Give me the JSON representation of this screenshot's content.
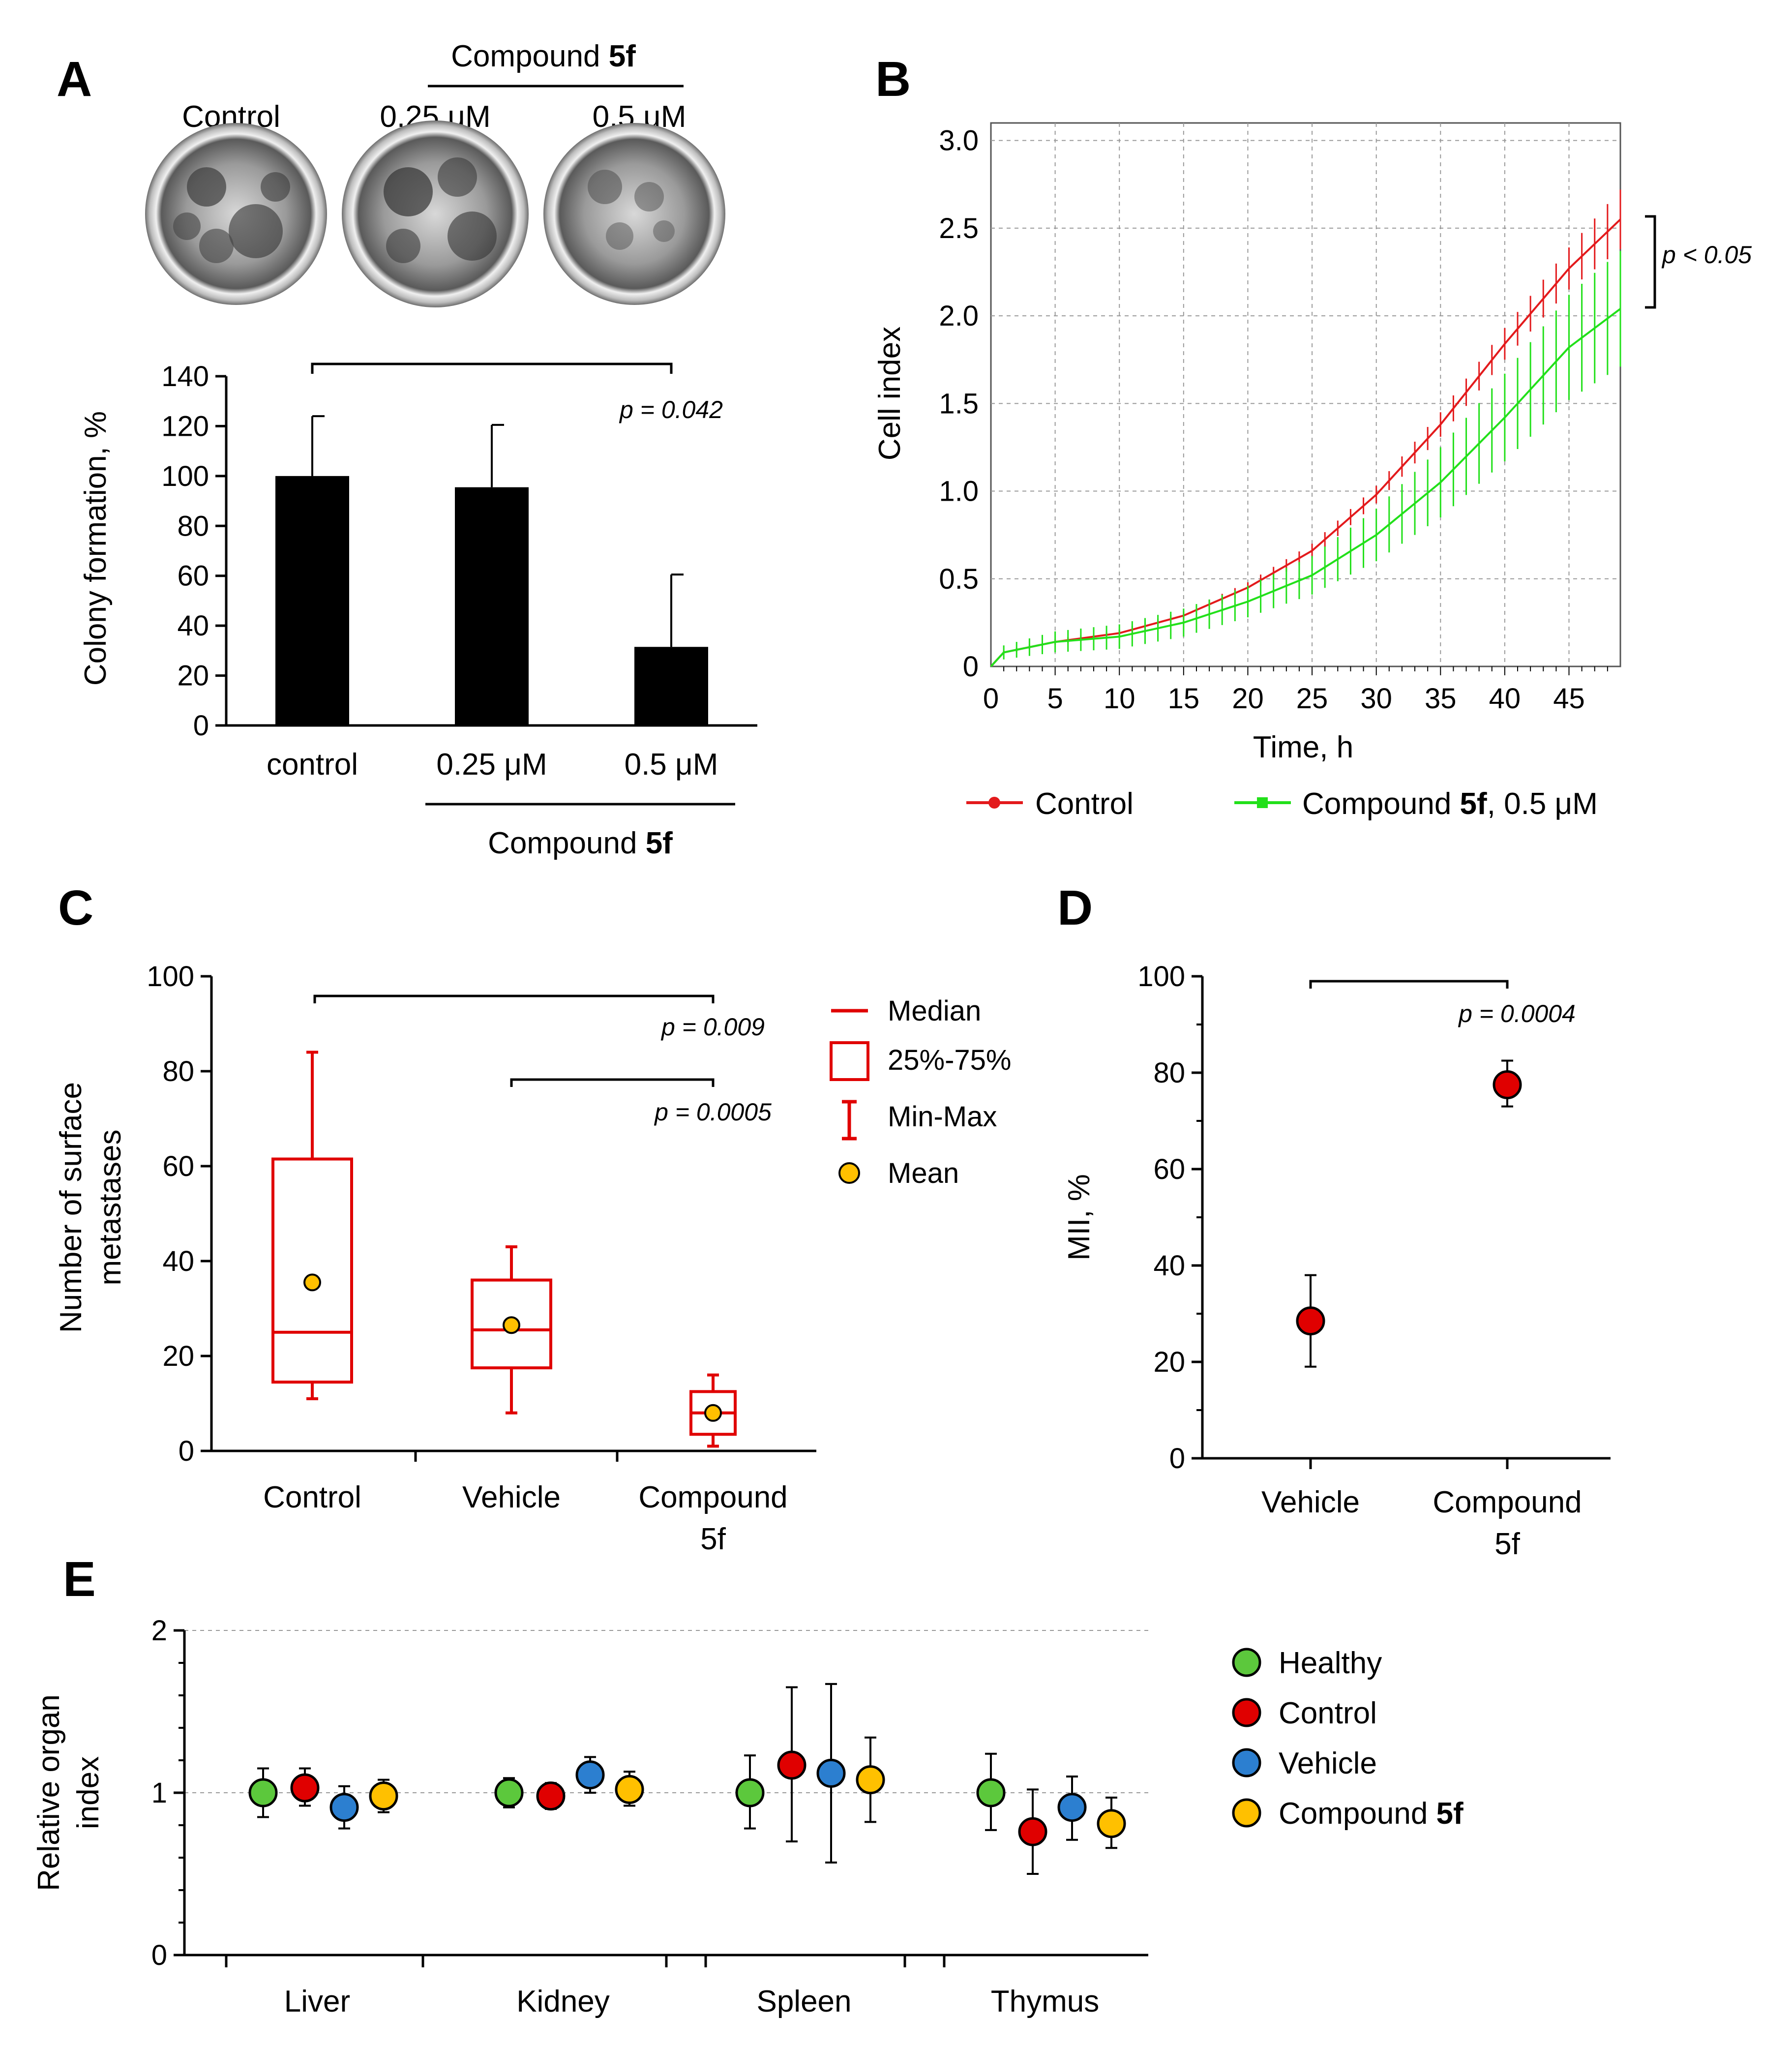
{
  "panels": {
    "a": "A",
    "b": "B",
    "c": "C",
    "d": "D",
    "e": "E"
  },
  "colors": {
    "red": "#e31a1c",
    "green": "#22e01a",
    "bar": "#000000",
    "healthy": "#5cc83c",
    "control": "#e00000",
    "vehicle": "#2c7fd0",
    "compound": "#ffc000",
    "mean": "#ffc000",
    "box": "#e00000"
  },
  "dish_labels": {
    "group": "Compound ",
    "group_bold": "5f",
    "control": "Control",
    "d1": "0.25 μM",
    "d2": "0.5 μM"
  },
  "chart_data": [
    {
      "id": "A",
      "type": "bar",
      "title": "",
      "ylabel": "Colony formation, %",
      "categories": [
        "control",
        "0.25 μM",
        "0.5 μM"
      ],
      "values": [
        100,
        95.5,
        31.5
      ],
      "errors": [
        24,
        25,
        29
      ],
      "ylim": [
        0,
        140
      ],
      "yticks": [
        "0",
        "20",
        "40",
        "60",
        "80",
        "100",
        "120",
        "140"
      ],
      "group_label": "Compound ",
      "group_label_bold": "5f",
      "significance": {
        "p": "p = 0.042",
        "from": "control",
        "to": "0.5 μM"
      }
    },
    {
      "id": "B",
      "type": "line",
      "xlabel": "Time, h",
      "ylabel": "Cell index",
      "xlim": [
        0,
        49
      ],
      "ylim": [
        0,
        3.1
      ],
      "xticks": [
        "0",
        "5",
        "10",
        "15",
        "20",
        "25",
        "30",
        "35",
        "40",
        "45"
      ],
      "yticks": [
        "0",
        "0.5",
        "1.0",
        "1.5",
        "2.0",
        "2.5",
        "3.0"
      ],
      "series": [
        {
          "name": "Control",
          "color": "#e31a1c",
          "x": [
            0,
            1,
            5,
            10,
            15,
            20,
            25,
            30,
            35,
            40,
            45,
            49
          ],
          "y": [
            0.0,
            0.08,
            0.14,
            0.19,
            0.29,
            0.45,
            0.66,
            0.98,
            1.38,
            1.84,
            2.27,
            2.55
          ],
          "err": [
            0.0,
            0.01,
            0.015,
            0.02,
            0.025,
            0.03,
            0.04,
            0.05,
            0.07,
            0.09,
            0.12,
            0.17
          ]
        },
        {
          "name": "Compound ",
          "name_bold": "5f",
          "name_suffix": ", 0.5 μM",
          "color": "#22e01a",
          "x": [
            0,
            1,
            5,
            10,
            15,
            20,
            25,
            30,
            35,
            40,
            45,
            49
          ],
          "y": [
            0.0,
            0.08,
            0.14,
            0.17,
            0.25,
            0.37,
            0.52,
            0.75,
            1.05,
            1.42,
            1.82,
            2.04
          ],
          "err": [
            0.0,
            0.04,
            0.06,
            0.07,
            0.08,
            0.09,
            0.11,
            0.15,
            0.2,
            0.25,
            0.3,
            0.33
          ]
        }
      ],
      "significance": {
        "p": "p < 0.05"
      }
    },
    {
      "id": "C",
      "type": "box",
      "ylabel_line1": "Number of surface",
      "ylabel_line2": "metastases",
      "categories": [
        "Control",
        "Vehicle",
        "Compound"
      ],
      "category_line2": [
        "",
        "",
        "5f"
      ],
      "ylim": [
        0,
        100
      ],
      "yticks": [
        "0",
        "20",
        "40",
        "60",
        "80",
        "100"
      ],
      "boxes": [
        {
          "min": 11,
          "q1": 14.5,
          "median": 25,
          "q3": 61.5,
          "max": 84,
          "mean": 35.5
        },
        {
          "min": 8,
          "q1": 17.5,
          "median": 25.5,
          "q3": 36,
          "max": 43,
          "mean": 26.5
        },
        {
          "min": 1,
          "q1": 3.5,
          "median": 8,
          "q3": 12.5,
          "max": 16,
          "mean": 8
        }
      ],
      "legend": [
        "Median",
        "25%-75%",
        "Min-Max",
        "Mean"
      ],
      "significance": [
        {
          "p": "p = 0.009"
        },
        {
          "p": "p = 0.0005"
        }
      ]
    },
    {
      "id": "D",
      "type": "scatter",
      "ylabel": "MII, %",
      "categories": [
        "Vehicle",
        "Compound"
      ],
      "category_line2": [
        "",
        "5f"
      ],
      "values": [
        28.5,
        77.5
      ],
      "lower": [
        19,
        73
      ],
      "upper": [
        38,
        82.5
      ],
      "ylim": [
        0,
        100
      ],
      "yticks": [
        "0",
        "20",
        "40",
        "60",
        "80",
        "100"
      ],
      "significance": {
        "p": "p = 0.0004"
      }
    },
    {
      "id": "E",
      "type": "scatter",
      "ylabel_line1": "Relative organ",
      "ylabel_line2": "index",
      "categories": [
        "Liver",
        "Kidney",
        "Spleen",
        "Thymus"
      ],
      "ylim": [
        0,
        2
      ],
      "yticks": [
        "0",
        "1",
        "2"
      ],
      "series": [
        {
          "name": "Healthy",
          "values": [
            1.0,
            1.0,
            1.0,
            1.0
          ],
          "lower": [
            0.85,
            0.91,
            0.78,
            0.77
          ],
          "upper": [
            1.15,
            1.09,
            1.23,
            1.24
          ]
        },
        {
          "name": "Control",
          "values": [
            1.03,
            0.98,
            1.17,
            0.76
          ],
          "lower": [
            0.92,
            0.9,
            0.7,
            0.5
          ],
          "upper": [
            1.15,
            1.06,
            1.65,
            1.02
          ]
        },
        {
          "name": "Vehicle",
          "values": [
            0.91,
            1.11,
            1.12,
            0.91
          ],
          "lower": [
            0.78,
            1.0,
            0.57,
            0.71
          ],
          "upper": [
            1.04,
            1.22,
            1.67,
            1.1
          ]
        },
        {
          "name": "Compound ",
          "name_bold": "5f",
          "values": [
            0.98,
            1.02,
            1.08,
            0.81
          ],
          "lower": [
            0.88,
            0.92,
            0.82,
            0.66
          ],
          "upper": [
            1.08,
            1.13,
            1.34,
            0.97
          ]
        }
      ]
    }
  ]
}
